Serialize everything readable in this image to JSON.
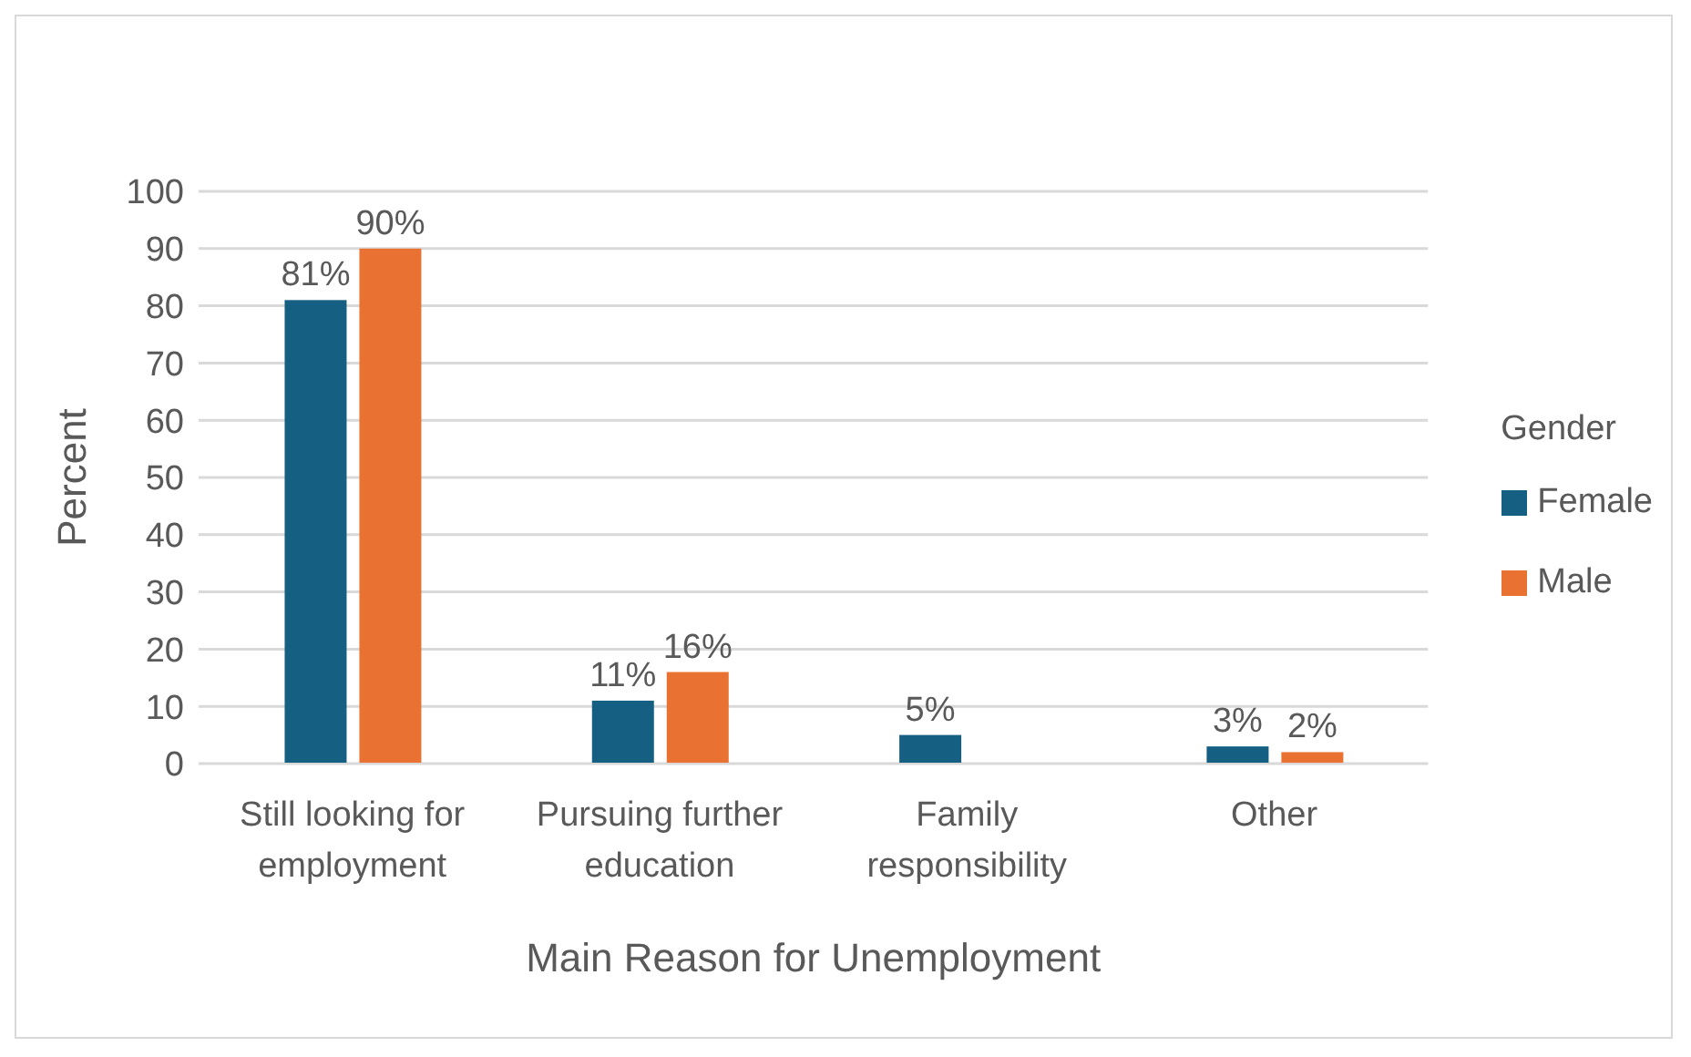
{
  "chart_data": {
    "type": "bar",
    "xlabel": "Main Reason for Unemployment",
    "ylabel": "Percent",
    "legend_title": "Gender",
    "categories": [
      "Still looking for employment",
      "Pursuing further education",
      "Family responsibility",
      "Other"
    ],
    "series": [
      {
        "name": "Female",
        "color": "#156082",
        "values": [
          81,
          11,
          5,
          3
        ],
        "value_labels": [
          "81%",
          "11%",
          "5%",
          "3%"
        ]
      },
      {
        "name": "Male",
        "color": "#e97132",
        "values": [
          90,
          16,
          null,
          2
        ],
        "value_labels": [
          "90%",
          "16%",
          null,
          "2%"
        ]
      }
    ],
    "ylim": [
      0,
      100
    ],
    "yticks": [
      0,
      10,
      20,
      30,
      40,
      50,
      60,
      70,
      80,
      90,
      100
    ],
    "grid": "y",
    "legend": "right"
  }
}
